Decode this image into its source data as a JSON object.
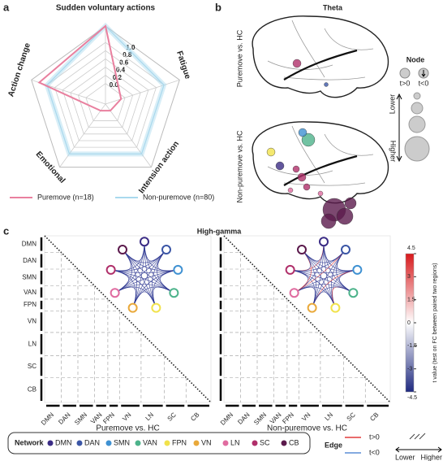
{
  "panel_labels": [
    "a",
    "b",
    "c"
  ],
  "chart_data": {
    "type": "radar",
    "categories": [
      "Sudden voluntary actions",
      "Fatigue",
      "Intension action",
      "Emotional",
      "Action change"
    ],
    "series": [
      {
        "name": "Puremove (n=18)",
        "color": "#e9809f",
        "values": [
          1.4,
          -0.1,
          -0.3,
          -0.3,
          1.2
        ]
      },
      {
        "name": "Non-puremove (n=80)",
        "color": "#a9d9ee",
        "values": [
          1.4,
          1.0,
          1.0,
          1.0,
          1.0
        ]
      }
    ],
    "rlim": [
      -0.5,
      1.4
    ],
    "rticks": [
      {
        "value": 0,
        "label": "0.0"
      },
      0.2,
      0.4,
      0.6,
      0.8,
      {
        "value": 1,
        "label": "1.0"
      }
    ]
  },
  "panel_b": {
    "title": "Theta",
    "rows": [
      "Puremove vs. HC",
      "Non-puremove vs. HC"
    ],
    "node_legend": {
      "title": "Node",
      "pos": "t>0",
      "neg": "t<0",
      "lower": "Lower",
      "higher": "Higher"
    }
  },
  "panel_c": {
    "title": "High-gamma",
    "networks": [
      {
        "name": "DMN",
        "color": "#3b2c85"
      },
      {
        "name": "DAN",
        "color": "#3b56a6"
      },
      {
        "name": "SMN",
        "color": "#3f91d2"
      },
      {
        "name": "VAN",
        "color": "#4db38b"
      },
      {
        "name": "FPN",
        "color": "#f1e24b"
      },
      {
        "name": "VN",
        "color": "#e9a93b"
      },
      {
        "name": "LN",
        "color": "#e06ca0"
      },
      {
        "name": "SC",
        "color": "#b02f6a"
      },
      {
        "name": "CB",
        "color": "#5b1a4c"
      }
    ],
    "matrices": [
      "Puremove vs. HC",
      "Non-puremove vs. HC"
    ],
    "colorbar": {
      "label": "t value (test on FC between paired two regions)",
      "lim": [
        -4.5,
        4.5
      ],
      "ticks": [
        4.5,
        3,
        1.5,
        0,
        -1.5,
        -3,
        -4.5
      ]
    }
  },
  "legend": {
    "network_title": "Network",
    "edge_title": "Edge",
    "edge_pos": "t>0",
    "edge_neg": "t<0",
    "lower": "Lower",
    "higher": "Higher"
  }
}
